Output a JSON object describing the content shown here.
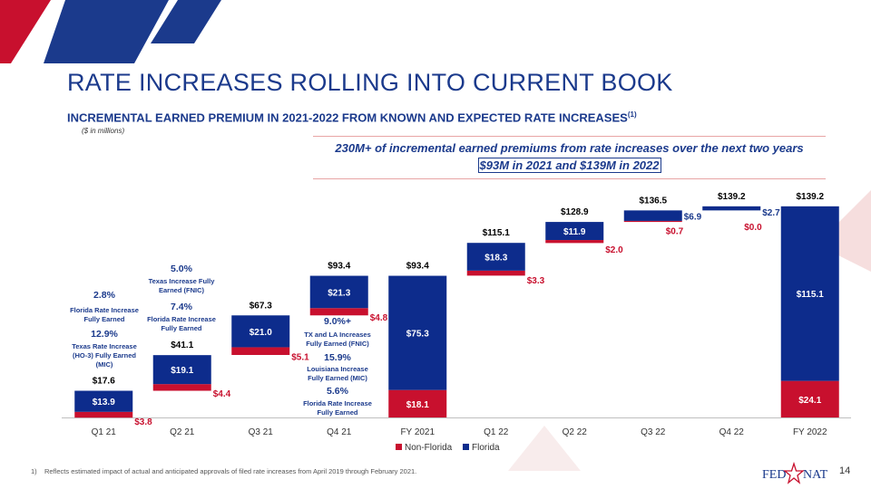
{
  "header": {
    "title": "RATE INCREASES ROLLING INTO CURRENT BOOK",
    "subtitle": "INCREMENTAL EARNED PREMIUM IN 2021-2022 FROM KNOWN AND EXPECTED RATE INCREASES",
    "subtitle_sup": "(1)",
    "units": "($ in millions)"
  },
  "callout": {
    "line1": "230M+ of incremental earned premiums from rate increases over the next two years",
    "line2": "$93M in 2021 and $139M in 2022"
  },
  "annotations": [
    {
      "id": "q1-fl-pct",
      "text": "2.8%"
    },
    {
      "id": "q1-fl-desc",
      "text": "Florida Rate Increase Fully Earned"
    },
    {
      "id": "q1-tx-pct",
      "text": "12.9%"
    },
    {
      "id": "q1-tx-desc",
      "text": "Texas Rate Increase (HO-3) Fully Earned (MIC)"
    },
    {
      "id": "q2-tx-pct",
      "text": "5.0%"
    },
    {
      "id": "q2-tx-desc",
      "text": "Texas Increase Fully Earned (FNIC)"
    },
    {
      "id": "q2-fl-pct",
      "text": "7.4%"
    },
    {
      "id": "q2-fl-desc",
      "text": "Florida Rate Increase Fully Earned"
    },
    {
      "id": "q4-txla-pct",
      "text": "9.0%+"
    },
    {
      "id": "q4-txla-desc",
      "text": "TX and LA Increases Fully Earned (FNIC)"
    },
    {
      "id": "q4-la-pct",
      "text": "15.9%"
    },
    {
      "id": "q4-la-desc",
      "text": "Louisiana Increase Fully Earned (MIC)"
    },
    {
      "id": "q4-fl-pct",
      "text": "5.6%"
    },
    {
      "id": "q4-fl-desc",
      "text": "Florida Rate Increase Fully Earned"
    }
  ],
  "chart_data": {
    "type": "bar",
    "subtype": "waterfall-stacked",
    "categories": [
      "Q1 21",
      "Q2 21",
      "Q3 21",
      "Q4 21",
      "FY 2021",
      "Q1 22",
      "Q2 22",
      "Q3 22",
      "Q4 22",
      "FY 2022"
    ],
    "series": [
      {
        "name": "Non-Florida",
        "color": "#c8102e",
        "values": [
          3.8,
          4.4,
          5.1,
          4.8,
          18.1,
          3.3,
          2.0,
          0.7,
          0.0,
          24.1
        ],
        "labels": [
          "$3.8",
          "$4.4",
          "$5.1",
          "$4.8",
          "$18.1",
          "$3.3",
          "$2.0",
          "$0.7",
          "$0.0",
          "$24.1"
        ]
      },
      {
        "name": "Florida",
        "color": "#0d2c8c",
        "values": [
          13.9,
          19.1,
          21.0,
          21.3,
          75.3,
          18.3,
          11.9,
          6.9,
          2.7,
          115.1
        ],
        "labels": [
          "$13.9",
          "$19.1",
          "$21.0",
          "$21.3",
          "$75.3",
          "$18.3",
          "$11.9",
          "$6.9",
          "$2.7",
          "$115.1"
        ]
      }
    ],
    "cumulative_totals": [
      17.6,
      41.1,
      67.3,
      93.4,
      93.4,
      115.1,
      128.9,
      136.5,
      139.2,
      139.2
    ],
    "total_labels": [
      "$17.6",
      "$41.1",
      "$67.3",
      "$93.4",
      "$93.4",
      "$115.1",
      "$128.9",
      "$136.5",
      "$139.2",
      "$139.2"
    ],
    "is_total_bar": [
      false,
      false,
      false,
      false,
      true,
      false,
      false,
      false,
      false,
      true
    ],
    "ylim": [
      0,
      155
    ],
    "legend": {
      "position": "bottom",
      "items": [
        "Non-Florida",
        "Florida"
      ]
    }
  },
  "footnote": {
    "number": "1)",
    "text": "Reflects estimated impact of actual and anticipated approvals of filed rate increases from April 2019 through February 2021."
  },
  "page_number": "14",
  "logo": {
    "left": "FED",
    "right": "NAT"
  }
}
